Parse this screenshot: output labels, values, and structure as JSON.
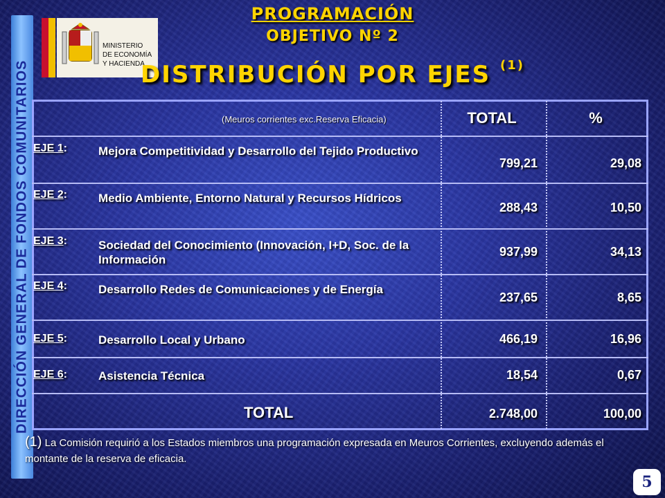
{
  "side_banner": "DIRECCIÓN GENERAL DE FONDOS COMUNITARIOS",
  "logo": {
    "line1": "MINISTERIO",
    "line2": "DE ECONOMÍA",
    "line3": "Y HACIENDA"
  },
  "header": {
    "title": "PROGRAMACIÓN",
    "subtitle": "OBJETIVO Nº 2",
    "main_title": "DISTRIBUCIÓN POR EJES",
    "main_title_note": "(1)"
  },
  "table": {
    "note": "(Meuros corrientes exc.Reserva Eficacia)",
    "col_total": "TOTAL",
    "col_pct": "%",
    "rows": [
      {
        "eje": "EJE 1",
        "desc": "Mejora Competitividad y Desarrollo del Tejido Productivo",
        "total": "799,21",
        "pct": "29,08"
      },
      {
        "eje": "EJE 2",
        "desc": "Medio Ambiente, Entorno Natural y Recursos Hídricos",
        "total": "288,43",
        "pct": "10,50"
      },
      {
        "eje": "EJE 3",
        "desc": "Sociedad del Conocimiento (Innovación, I+D, Soc. de la Información",
        "total": "937,99",
        "pct": "34,13"
      },
      {
        "eje": "EJE 4",
        "desc": "Desarrollo Redes de Comunicaciones y de Energía",
        "total": "237,65",
        "pct": "8,65"
      },
      {
        "eje": "EJE 5",
        "desc": "Desarrollo Local y Urbano",
        "total": "466,19",
        "pct": "16,96"
      },
      {
        "eje": "EJE 6",
        "desc": "Asistencia Técnica",
        "total": "18,54",
        "pct": "0,67"
      }
    ],
    "total_label": "TOTAL",
    "total_value": "2.748,00",
    "total_pct": "100,00"
  },
  "footnote": {
    "mark": "(1)",
    "text": "La Comisión requirió a los Estados miembros una programación expresada en Meuros Corrientes, excluyendo además el montante de la reserva de eficacia."
  },
  "page_number": "5"
}
